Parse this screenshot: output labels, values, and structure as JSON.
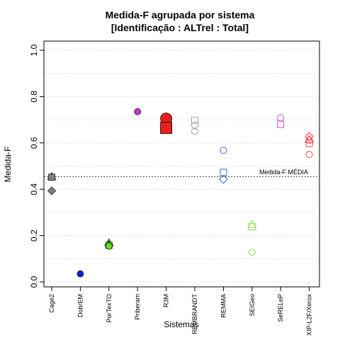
{
  "chart_data": {
    "type": "scatter",
    "title_line1": "Medida-F agrupada por sistema",
    "title_line2": "[Identificação : ALTrel : Total]",
    "xlabel": "Sistemas",
    "ylabel": "Medida-F",
    "ylim": [
      0.0,
      1.0
    ],
    "y_ticks": [
      "0.0",
      "0.2",
      "0.4",
      "0.6",
      "0.8",
      "1.0"
    ],
    "grid": "horizontal dotted",
    "categories": [
      "Cage2",
      "DobrEM",
      "PorTexTO",
      "Priberam",
      "R3M",
      "REMBRANDT",
      "REMMA",
      "SEIGeo",
      "SeRELeP",
      "XIP-L2F/Xerox"
    ],
    "reference_line": {
      "label": "Medida-F MÉDIA",
      "value": 0.455
    },
    "points": [
      {
        "system": "Cage2",
        "value": 0.455,
        "shape": "triangle",
        "filled": true,
        "color": "#808080"
      },
      {
        "system": "Cage2",
        "value": 0.452,
        "shape": "square",
        "filled": true,
        "color": "#808080"
      },
      {
        "system": "Cage2",
        "value": 0.393,
        "shape": "diamond",
        "filled": true,
        "color": "#808080"
      },
      {
        "system": "DobrEM",
        "value": 0.035,
        "shape": "circle",
        "filled": true,
        "color": "#1a1adb"
      },
      {
        "system": "PorTexTO",
        "value": 0.168,
        "shape": "triangle",
        "filled": true,
        "color": "#5ee619"
      },
      {
        "system": "PorTexTO",
        "value": 0.16,
        "shape": "diamond",
        "filled": true,
        "color": "#5ee619"
      },
      {
        "system": "PorTexTO",
        "value": 0.158,
        "shape": "square",
        "filled": true,
        "color": "#5ee619"
      },
      {
        "system": "PorTexTO",
        "value": 0.155,
        "shape": "circle",
        "filled": true,
        "color": "#5ee619"
      },
      {
        "system": "Priberam",
        "value": 0.735,
        "shape": "circle",
        "filled": true,
        "color": "#cc33cc"
      },
      {
        "system": "R3M",
        "value": 0.705,
        "shape": "circle",
        "filled": true,
        "color": "#e62020",
        "size": "large"
      },
      {
        "system": "R3M",
        "value": 0.665,
        "shape": "square",
        "filled": true,
        "color": "#e62020",
        "size": "large"
      },
      {
        "system": "REMBRANDT",
        "value": 0.698,
        "shape": "square",
        "filled": false,
        "color": "#a0a0a0"
      },
      {
        "system": "REMBRANDT",
        "value": 0.676,
        "shape": "diamond",
        "filled": false,
        "color": "#a0a0a0"
      },
      {
        "system": "REMBRANDT",
        "value": 0.65,
        "shape": "circle",
        "filled": false,
        "color": "#a0a0a0"
      },
      {
        "system": "REMMA",
        "value": 0.568,
        "shape": "circle",
        "filled": false,
        "color": "#4466e6"
      },
      {
        "system": "REMMA",
        "value": 0.473,
        "shape": "square",
        "filled": false,
        "color": "#4466e6"
      },
      {
        "system": "REMMA",
        "value": 0.443,
        "shape": "diamond",
        "filled": false,
        "color": "#4466e6"
      },
      {
        "system": "SEIGeo",
        "value": 0.248,
        "shape": "triangle",
        "filled": false,
        "color": "#88e044"
      },
      {
        "system": "SEIGeo",
        "value": 0.238,
        "shape": "square",
        "filled": false,
        "color": "#88e044"
      },
      {
        "system": "SEIGeo",
        "value": 0.128,
        "shape": "circle",
        "filled": false,
        "color": "#88e044"
      },
      {
        "system": "SeRELeP",
        "value": 0.708,
        "shape": "circle",
        "filled": false,
        "color": "#dd44dd"
      },
      {
        "system": "SeRELeP",
        "value": 0.68,
        "shape": "square",
        "filled": false,
        "color": "#dd44dd"
      },
      {
        "system": "XIP-L2F/Xerox",
        "value": 0.628,
        "shape": "diamond",
        "filled": false,
        "color": "#f04444"
      },
      {
        "system": "XIP-L2F/Xerox",
        "value": 0.615,
        "shape": "triangle",
        "filled": false,
        "color": "#f04444"
      },
      {
        "system": "XIP-L2F/Xerox",
        "value": 0.612,
        "shape": "circle",
        "filled": false,
        "color": "#f04444"
      },
      {
        "system": "XIP-L2F/Xerox",
        "value": 0.598,
        "shape": "square",
        "filled": false,
        "color": "#f04444"
      },
      {
        "system": "XIP-L2F/Xerox",
        "value": 0.55,
        "shape": "circle",
        "filled": false,
        "color": "#f04444"
      }
    ]
  }
}
